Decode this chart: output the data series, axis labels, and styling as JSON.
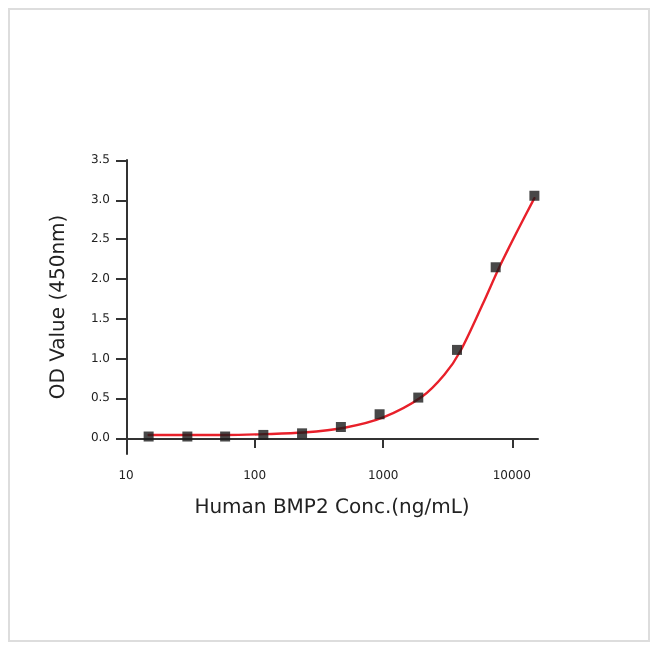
{
  "chart_data": {
    "type": "scatter",
    "xlabel": "Human BMP2 Conc.(ng/mL)",
    "ylabel": "OD Value (450nm)",
    "log": "x",
    "xlim": [
      10,
      16000
    ],
    "xticks": [
      10,
      100,
      1000,
      10000
    ],
    "ylim": [
      -0.2,
      3.5
    ],
    "yticks": [
      {
        "value": 0,
        "label": "0.0"
      },
      0.5,
      {
        "value": 1,
        "label": "1.0"
      },
      1.5,
      {
        "value": 2,
        "label": "2.0"
      },
      2.5,
      {
        "value": 3,
        "label": "3.0"
      },
      3.5
    ],
    "grid": false,
    "marker": "square",
    "series": [
      {
        "color": "#1a1a1a",
        "x": [
          15,
          30,
          59,
          117,
          234,
          469,
          938,
          1875,
          3750,
          7500,
          15000
        ],
        "values": [
          0.02,
          0.02,
          0.02,
          0.04,
          0.06,
          0.14,
          0.3,
          0.51,
          1.11,
          2.15,
          3.05
        ]
      },
      {
        "type": "line",
        "marker": "none",
        "color": "#e8202a",
        "line_style": "solid",
        "x": [
          15,
          30,
          60,
          120,
          240,
          500,
          1000,
          2000,
          3000,
          4000,
          6000,
          8000,
          11000,
          15000
        ],
        "values": [
          0.04,
          0.04,
          0.04,
          0.05,
          0.07,
          0.13,
          0.26,
          0.52,
          0.8,
          1.1,
          1.7,
          2.15,
          2.6,
          3.02
        ]
      }
    ]
  }
}
